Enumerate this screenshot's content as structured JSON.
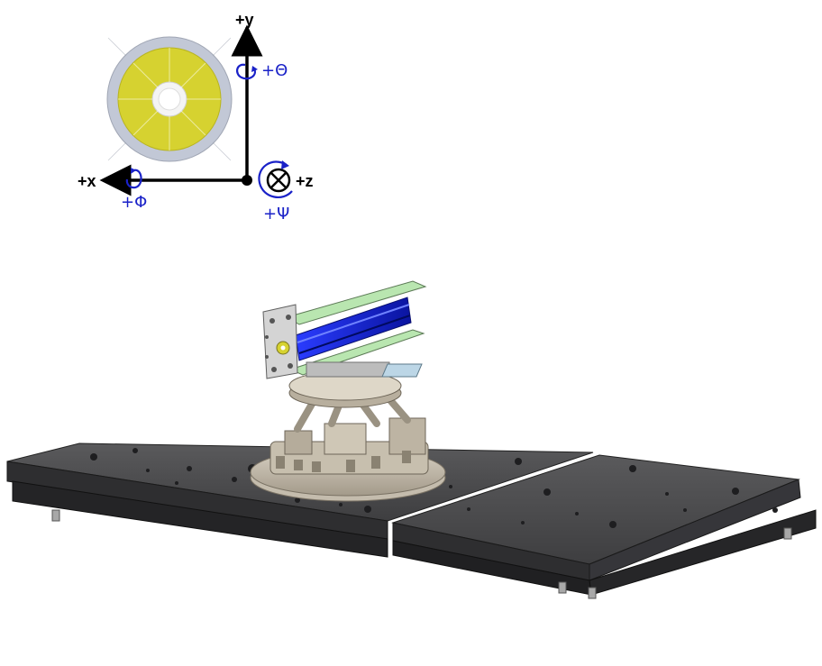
{
  "axes": {
    "y_label": "+y",
    "x_label": "+x",
    "z_label": "+z",
    "theta_label": "+Θ",
    "phi_label": "+Φ",
    "psi_label": "+Ψ"
  },
  "colors": {
    "axis": "#000000",
    "rotation": "#1a22c8",
    "disk_outer": "#c2c8d6",
    "disk_inner": "#d6d230",
    "table_top": "#4a4a4c",
    "table_side": "#2e2e30",
    "hexapod": "#b9b1a2",
    "mount_plate": "#b9e6b0",
    "optic_blue": "#1428d8"
  }
}
